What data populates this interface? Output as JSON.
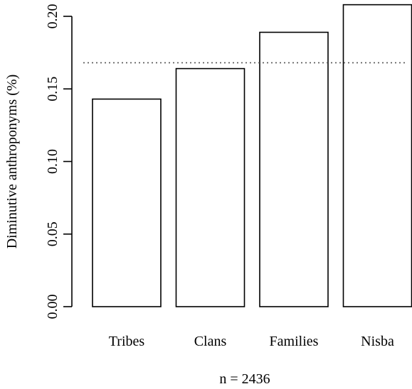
{
  "chart_data": {
    "type": "bar",
    "categories": [
      "Tribes",
      "Clans",
      "Families",
      "Nisba"
    ],
    "values": [
      0.143,
      0.164,
      0.189,
      0.208
    ],
    "title": "",
    "xlabel": "n = 2436",
    "ylabel": "Diminutive anthroponyms (%)",
    "ylim": [
      0,
      0.2
    ],
    "yticks": [
      0,
      0.05,
      0.1,
      0.15,
      0.2
    ],
    "ytick_labels": [
      "0.00",
      "0.05",
      "0.10",
      "0.15",
      "0.20"
    ],
    "reference_line": 0.168,
    "reference_line_style": "dotted",
    "grid": false,
    "bar_fill": "#ffffff",
    "bar_stroke": "#000000"
  }
}
